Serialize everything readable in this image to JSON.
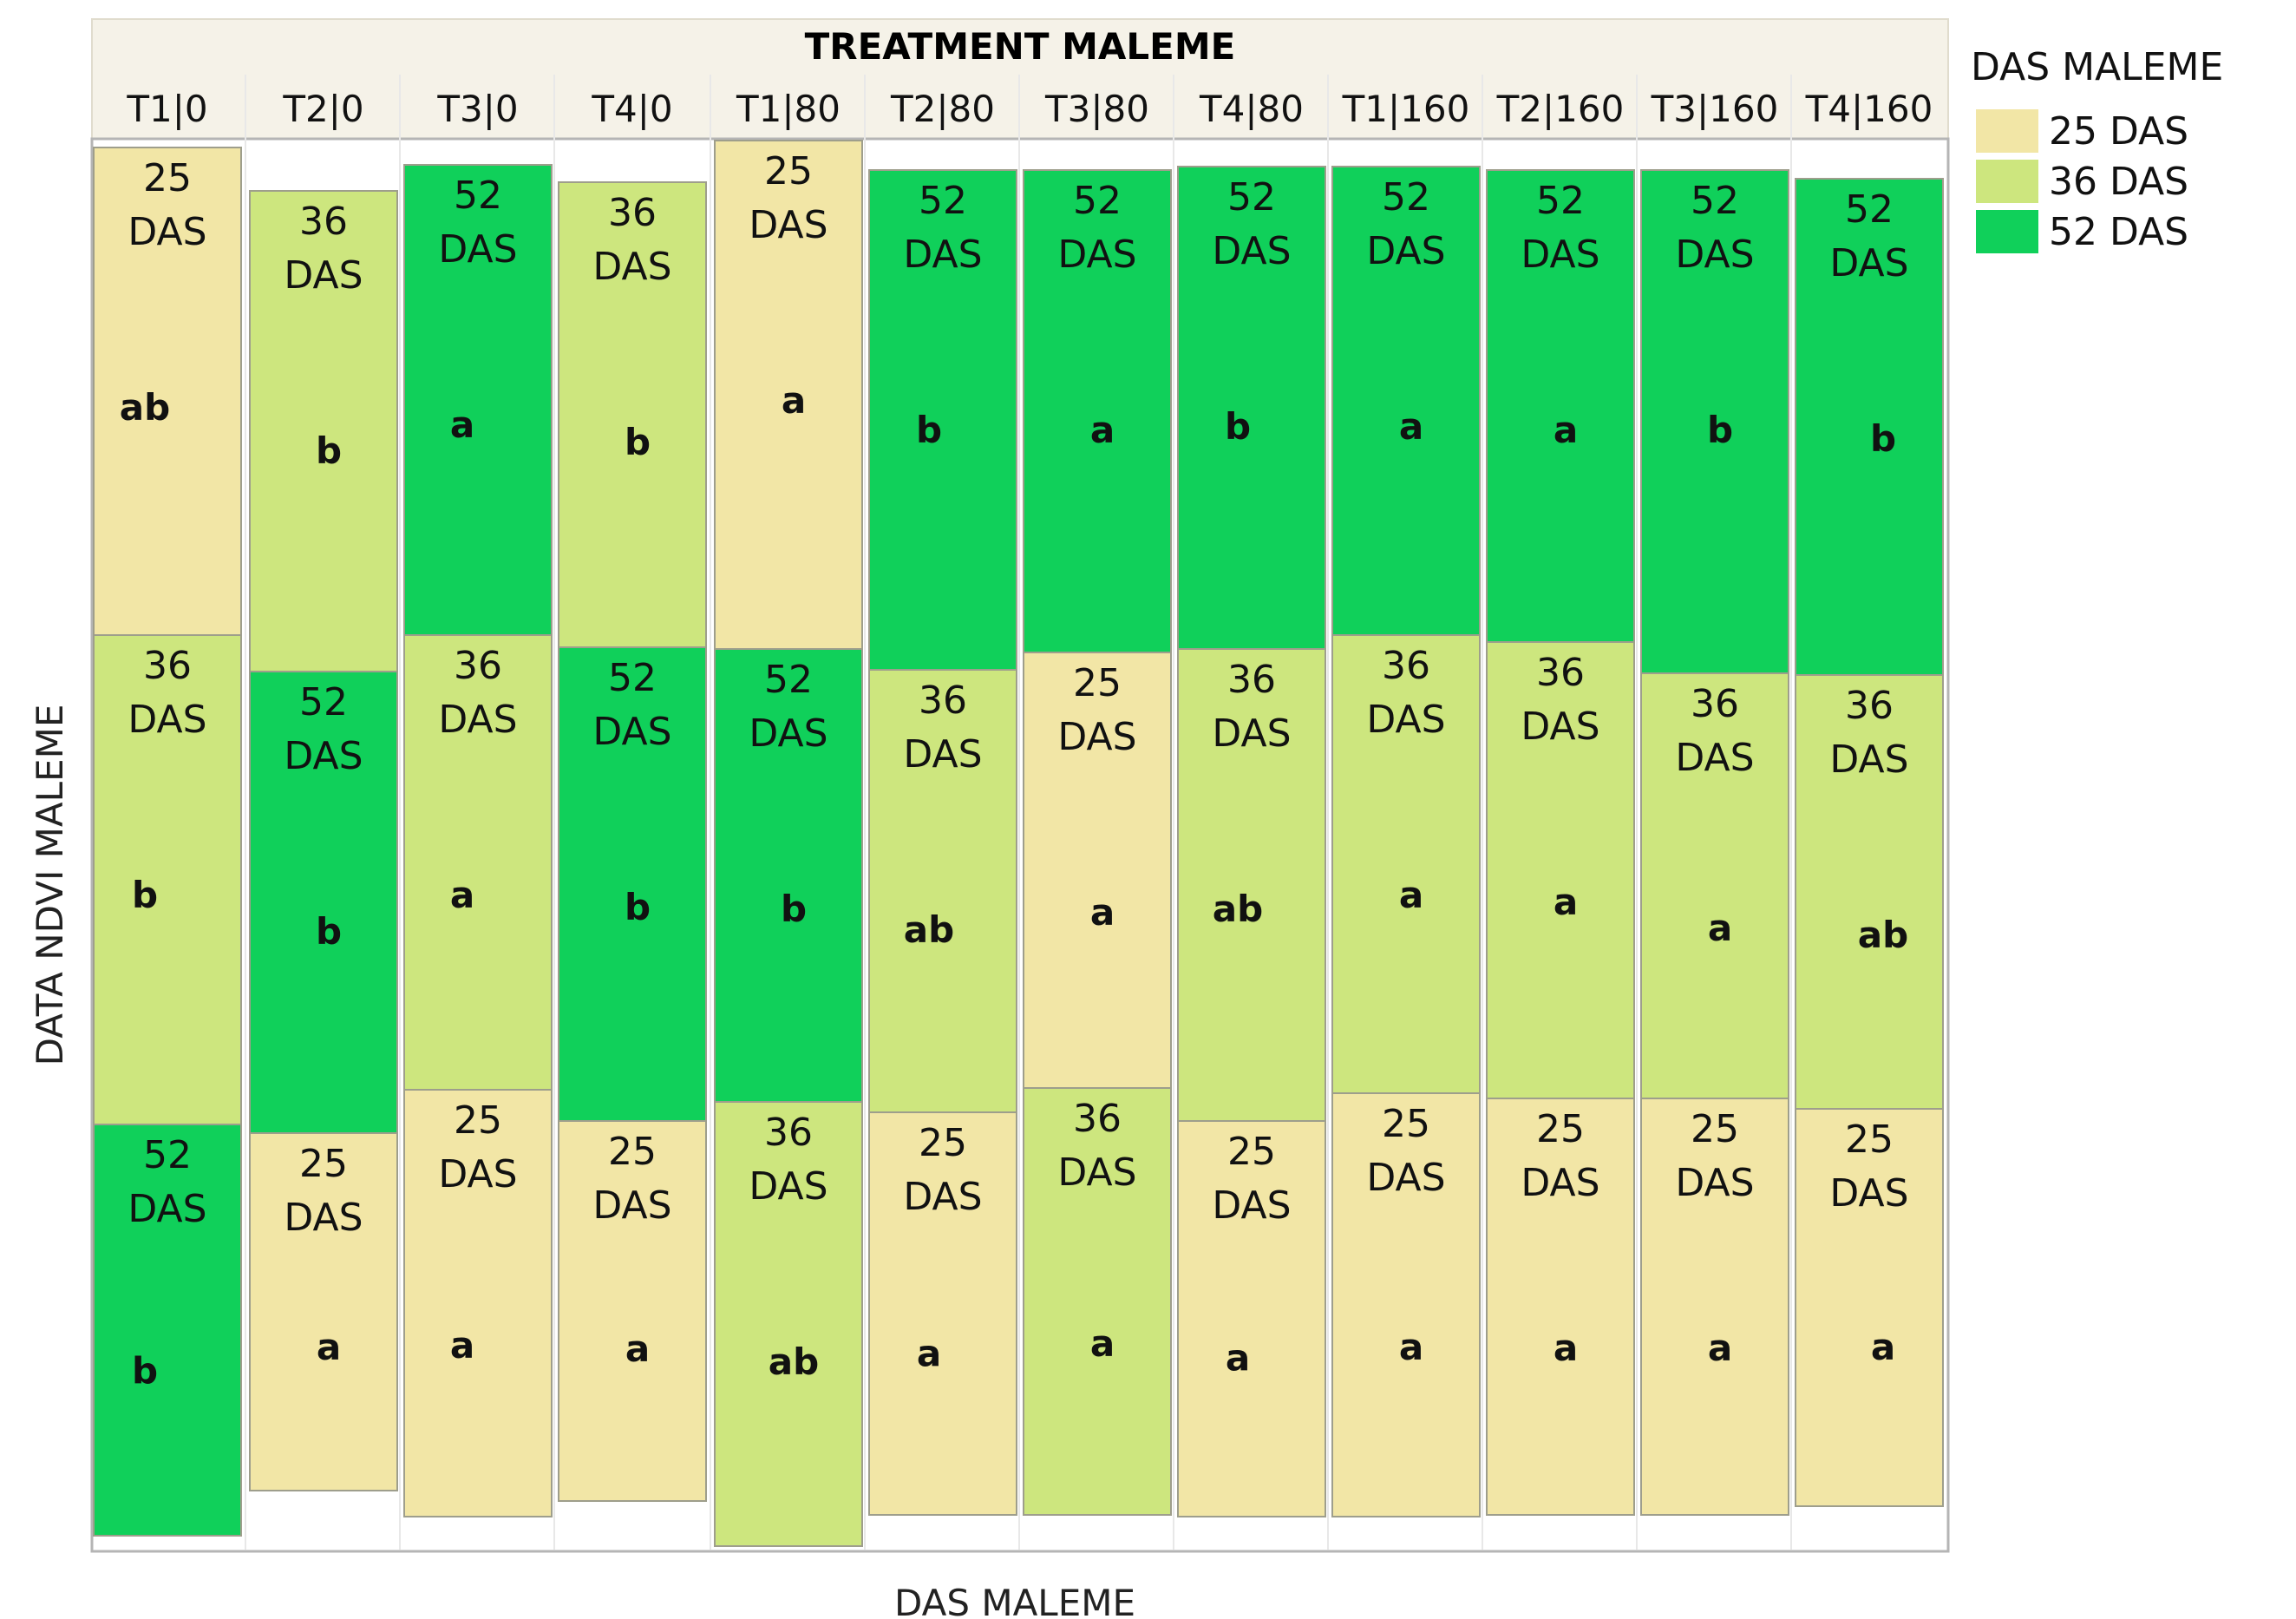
{
  "chart_data": {
    "type": "table",
    "header_title": "TREATMENT MALEME",
    "xlabel": "DAS MALEME",
    "ylabel": "DATA NDVI MALEME",
    "legend": {
      "title": "DAS MALEME",
      "position": "top-right",
      "items": [
        {
          "label": "25 DAS",
          "color": "#f2e6a6"
        },
        {
          "label": "36 DAS",
          "color": "#cde67e"
        },
        {
          "label": "52 DAS",
          "color": "#10d05a"
        }
      ]
    },
    "categories": [
      "T1|0",
      "T2|0",
      "T3|0",
      "T4|0",
      "T1|80",
      "T2|80",
      "T3|80",
      "T4|80",
      "T1|160",
      "T2|160",
      "T3|160",
      "T4|160"
    ],
    "columns": [
      {
        "category": "T1|0",
        "segments": [
          {
            "das": 25,
            "label": "25\nDAS",
            "letter": "ab"
          },
          {
            "das": 36,
            "label": "36\nDAS",
            "letter": "b"
          },
          {
            "das": 52,
            "label": "52\nDAS",
            "letter": "b"
          }
        ]
      },
      {
        "category": "T2|0",
        "segments": [
          {
            "das": 36,
            "label": "36\nDAS",
            "letter": "b"
          },
          {
            "das": 52,
            "label": "52\nDAS",
            "letter": "b"
          },
          {
            "das": 25,
            "label": "25\nDAS",
            "letter": "a"
          }
        ]
      },
      {
        "category": "T3|0",
        "segments": [
          {
            "das": 52,
            "label": "52\nDAS",
            "letter": "a"
          },
          {
            "das": 36,
            "label": "36\nDAS",
            "letter": "a"
          },
          {
            "das": 25,
            "label": "25\nDAS",
            "letter": "a"
          }
        ]
      },
      {
        "category": "T4|0",
        "segments": [
          {
            "das": 36,
            "label": "36\nDAS",
            "letter": "b"
          },
          {
            "das": 52,
            "label": "52\nDAS",
            "letter": "b"
          },
          {
            "das": 25,
            "label": "25\nDAS",
            "letter": "a"
          }
        ]
      },
      {
        "category": "T1|80",
        "segments": [
          {
            "das": 25,
            "label": "25\nDAS",
            "letter": "a"
          },
          {
            "das": 52,
            "label": "52\nDAS",
            "letter": "b"
          },
          {
            "das": 36,
            "label": "36\nDAS",
            "letter": "ab"
          }
        ]
      },
      {
        "category": "T2|80",
        "segments": [
          {
            "das": 52,
            "label": "52\nDAS",
            "letter": "b"
          },
          {
            "das": 36,
            "label": "36\nDAS",
            "letter": "ab"
          },
          {
            "das": 25,
            "label": "25\nDAS",
            "letter": "a"
          }
        ]
      },
      {
        "category": "T3|80",
        "segments": [
          {
            "das": 52,
            "label": "52\nDAS",
            "letter": "a"
          },
          {
            "das": 25,
            "label": "25\nDAS",
            "letter": "a"
          },
          {
            "das": 36,
            "label": "36\nDAS",
            "letter": "a"
          }
        ]
      },
      {
        "category": "T4|80",
        "segments": [
          {
            "das": 52,
            "label": "52\nDAS",
            "letter": "b"
          },
          {
            "das": 36,
            "label": "36\nDAS",
            "letter": "ab"
          },
          {
            "das": 25,
            "label": "25\nDAS",
            "letter": "a"
          }
        ]
      },
      {
        "category": "T1|160",
        "segments": [
          {
            "das": 52,
            "label": "52\nDAS",
            "letter": "a"
          },
          {
            "das": 36,
            "label": "36\nDAS",
            "letter": "a"
          },
          {
            "das": 25,
            "label": "25\nDAS",
            "letter": "a"
          }
        ]
      },
      {
        "category": "T2|160",
        "segments": [
          {
            "das": 52,
            "label": "52\nDAS",
            "letter": "a"
          },
          {
            "das": 36,
            "label": "36\nDAS",
            "letter": "a"
          },
          {
            "das": 25,
            "label": "25\nDAS",
            "letter": "a"
          }
        ]
      },
      {
        "category": "T3|160",
        "segments": [
          {
            "das": 52,
            "label": "52\nDAS",
            "letter": "b"
          },
          {
            "das": 36,
            "label": "36\nDAS",
            "letter": "a"
          },
          {
            "das": 25,
            "label": "25\nDAS",
            "letter": "a"
          }
        ]
      },
      {
        "category": "T4|160",
        "segments": [
          {
            "das": 52,
            "label": "52\nDAS",
            "letter": "b"
          },
          {
            "das": 36,
            "label": "36\nDAS",
            "letter": "ab"
          },
          {
            "das": 25,
            "label": "25\nDAS",
            "letter": "a"
          }
        ]
      }
    ]
  }
}
